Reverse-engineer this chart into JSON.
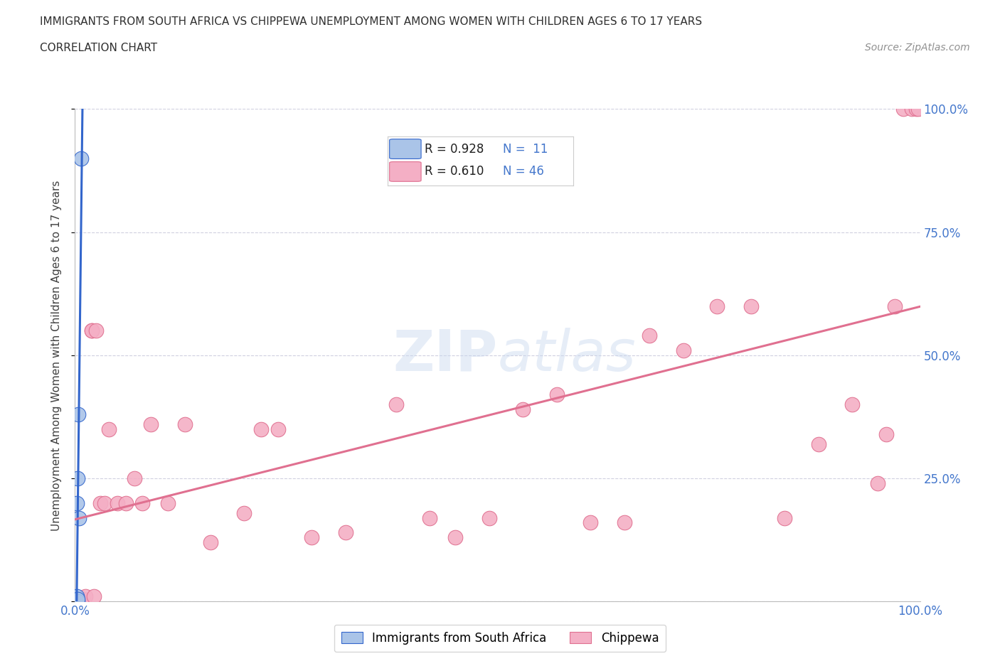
{
  "title_line1": "IMMIGRANTS FROM SOUTH AFRICA VS CHIPPEWA UNEMPLOYMENT AMONG WOMEN WITH CHILDREN AGES 6 TO 17 YEARS",
  "title_line2": "CORRELATION CHART",
  "source_text": "Source: ZipAtlas.com",
  "ylabel": "Unemployment Among Women with Children Ages 6 to 17 years",
  "xlim": [
    0,
    1.0
  ],
  "ylim": [
    0,
    1.0
  ],
  "watermark": "ZIPatlas",
  "series1_color": "#aac4e8",
  "series2_color": "#f4afc5",
  "line1_color": "#3366cc",
  "line2_color": "#e07090",
  "background_color": "#ffffff",
  "grid_color": "#d0d0e0",
  "title_color": "#303030",
  "label_color": "#4477cc",
  "series1_name": "Immigrants from South Africa",
  "series2_name": "Chippewa",
  "sa_x": [
    0.002,
    0.002,
    0.002,
    0.002,
    0.002,
    0.003,
    0.003,
    0.003,
    0.004,
    0.005,
    0.007
  ],
  "sa_y": [
    0.0,
    0.0,
    0.005,
    0.01,
    0.2,
    0.0,
    0.005,
    0.25,
    0.38,
    0.17,
    0.9
  ],
  "chip_x": [
    0.005,
    0.008,
    0.01,
    0.012,
    0.02,
    0.02,
    0.022,
    0.025,
    0.03,
    0.035,
    0.04,
    0.05,
    0.06,
    0.07,
    0.08,
    0.09,
    0.11,
    0.13,
    0.16,
    0.2,
    0.22,
    0.24,
    0.28,
    0.32,
    0.38,
    0.42,
    0.45,
    0.49,
    0.53,
    0.57,
    0.61,
    0.65,
    0.68,
    0.72,
    0.76,
    0.8,
    0.84,
    0.88,
    0.92,
    0.95,
    0.96,
    0.97,
    0.98,
    0.99,
    0.995,
    0.998
  ],
  "chip_y": [
    0.0,
    0.0,
    0.005,
    0.01,
    0.55,
    0.55,
    0.01,
    0.55,
    0.2,
    0.2,
    0.35,
    0.2,
    0.2,
    0.25,
    0.2,
    0.36,
    0.2,
    0.36,
    0.12,
    0.18,
    0.35,
    0.35,
    0.13,
    0.14,
    0.4,
    0.17,
    0.13,
    0.17,
    0.39,
    0.42,
    0.16,
    0.16,
    0.54,
    0.51,
    0.6,
    0.6,
    0.17,
    0.32,
    0.4,
    0.24,
    0.34,
    0.6,
    1.0,
    1.0,
    1.0,
    1.0
  ]
}
